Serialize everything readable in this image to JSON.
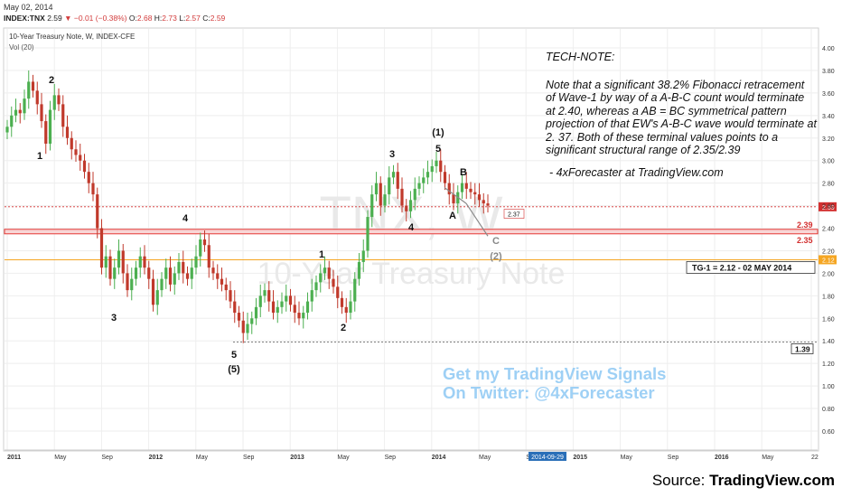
{
  "header": {
    "date": "May 02, 2014",
    "symbol": "INDEX:TNX",
    "last": "2.59",
    "change": "−0.01 (−0.38%)",
    "o_label": "O:",
    "o": "2.68",
    "h_label": "H:",
    "h": "2.73",
    "l_label": "L:",
    "l": "2.57",
    "c_label": "C:",
    "c": "2.59"
  },
  "chart_title": "10-Year Treasury Note, W, INDEX-CFE",
  "volume_label": "Vol (20)",
  "watermark": {
    "symbol": "TNX, W",
    "name": "10-Year Treasury Note"
  },
  "tech_note": {
    "heading": "TECH-NOTE:",
    "body": "Note that a significant 38.2% Fibonacci retracement of Wave-1 by way of a A-B-C count would terminate at 2.40, whereas a AB = BC symmetrical pattern projection of that EW's A-B-C wave would terminate at 2. 37. Both of these terminal values points to a significant structural range of 2.35/2.39",
    "signature": "- 4xForecaster at TradingView.com"
  },
  "promo": {
    "line1": "Get my TradingView Signals",
    "line2": "On Twitter: @4xForecaster"
  },
  "source": {
    "prefix": "Source: ",
    "name": "TradingView.com"
  },
  "labels": {
    "tg1": "TG-1 = 2.12 - 02 MAY 2014",
    "projection": "2.37",
    "zone_top": "2.39",
    "zone_bottom": "2.35",
    "low_level": "1.39",
    "price_tag": "2.59",
    "tg_tag": "2.12",
    "cursor_date": "2014-09-29"
  },
  "colors": {
    "candle_up": "#4caf50",
    "candle_down": "#c0392b",
    "zone": "#e53935",
    "tg_line": "#f5a623",
    "promo": "#9ed0f5"
  },
  "chart_data": {
    "type": "candlestick",
    "title": "10-Year Treasury Note, W, INDEX-CFE",
    "x_ticks": [
      "2011",
      "May",
      "Sep",
      "2012",
      "May",
      "Sep",
      "2013",
      "May",
      "Sep",
      "2014",
      "May",
      "Sep",
      "2015",
      "May",
      "Sep",
      "2016",
      "May",
      "22"
    ],
    "y_ticks": [
      "4.00",
      "3.80",
      "3.60",
      "3.40",
      "3.20",
      "3.00",
      "2.80",
      "2.60",
      "2.40",
      "2.20",
      "2.00",
      "1.80",
      "1.60",
      "1.40",
      "1.20",
      "1.00",
      "0.80",
      "0.60"
    ],
    "ylim": [
      0.5,
      4.1
    ],
    "grid": true,
    "series": [
      {
        "name": "TNX",
        "values": [
          3.3,
          3.4,
          3.45,
          3.42,
          3.55,
          3.7,
          3.62,
          3.5,
          3.35,
          3.15,
          3.45,
          3.58,
          3.5,
          3.3,
          3.2,
          3.1,
          3.05,
          3.0,
          2.9,
          2.8,
          2.7,
          2.4,
          2.05,
          2.15,
          1.95,
          2.05,
          2.2,
          2.0,
          1.85,
          1.95,
          2.05,
          2.15,
          2.05,
          1.95,
          1.72,
          1.85,
          1.95,
          2.05,
          1.9,
          2.0,
          2.1,
          2.0,
          1.95,
          2.05,
          2.15,
          2.3,
          2.25,
          2.05,
          2.0,
          1.95,
          1.9,
          1.85,
          1.75,
          1.65,
          1.58,
          1.47,
          1.55,
          1.6,
          1.7,
          1.8,
          1.85,
          1.75,
          1.65,
          1.7,
          1.75,
          1.8,
          1.72,
          1.65,
          1.6,
          1.65,
          1.75,
          1.85,
          1.92,
          2.0,
          2.05,
          1.95,
          1.88,
          1.78,
          1.7,
          1.65,
          1.75,
          1.95,
          2.1,
          2.2,
          2.5,
          2.7,
          2.8,
          2.6,
          2.7,
          2.85,
          2.9,
          2.75,
          2.6,
          2.55,
          2.65,
          2.75,
          2.8,
          2.85,
          2.9,
          2.95,
          3.0,
          2.9,
          2.8,
          2.7,
          2.62,
          2.72,
          2.8,
          2.75,
          2.72,
          2.7,
          2.65,
          2.62,
          2.6
        ]
      }
    ],
    "annotations": [
      {
        "text": "1",
        "x": "2011-02",
        "y": 3.2
      },
      {
        "text": "2",
        "x": "2011-02",
        "y": 3.7
      },
      {
        "text": "3",
        "x": "2011-09",
        "y": 1.72
      },
      {
        "text": "4",
        "x": "2012-03",
        "y": 2.38
      },
      {
        "text": "5",
        "x": "2012-07",
        "y": 1.39
      },
      {
        "text": "(5)",
        "x": "2012-07",
        "y": 1.39
      },
      {
        "text": "1",
        "x": "2013-03",
        "y": 2.05
      },
      {
        "text": "2",
        "x": "2013-05",
        "y": 1.63
      },
      {
        "text": "3",
        "x": "2013-09",
        "y": 2.98
      },
      {
        "text": "4",
        "x": "2013-10",
        "y": 2.48
      },
      {
        "text": "5",
        "x": "2014-01",
        "y": 3.04
      },
      {
        "text": "(1)",
        "x": "2014-01",
        "y": 3.04
      },
      {
        "text": "A",
        "x": "2014-02",
        "y": 2.58
      },
      {
        "text": "B",
        "x": "2014-03",
        "y": 2.82
      },
      {
        "text": "C",
        "x": "2014-05",
        "y": 2.3
      },
      {
        "text": "(2)",
        "x": "2014-05",
        "y": 2.3
      }
    ],
    "levels": [
      {
        "name": "zone",
        "from": 2.35,
        "to": 2.39
      },
      {
        "name": "tg-1",
        "value": 2.12
      },
      {
        "name": "low",
        "value": 1.39
      },
      {
        "name": "last",
        "value": 2.59
      }
    ]
  }
}
